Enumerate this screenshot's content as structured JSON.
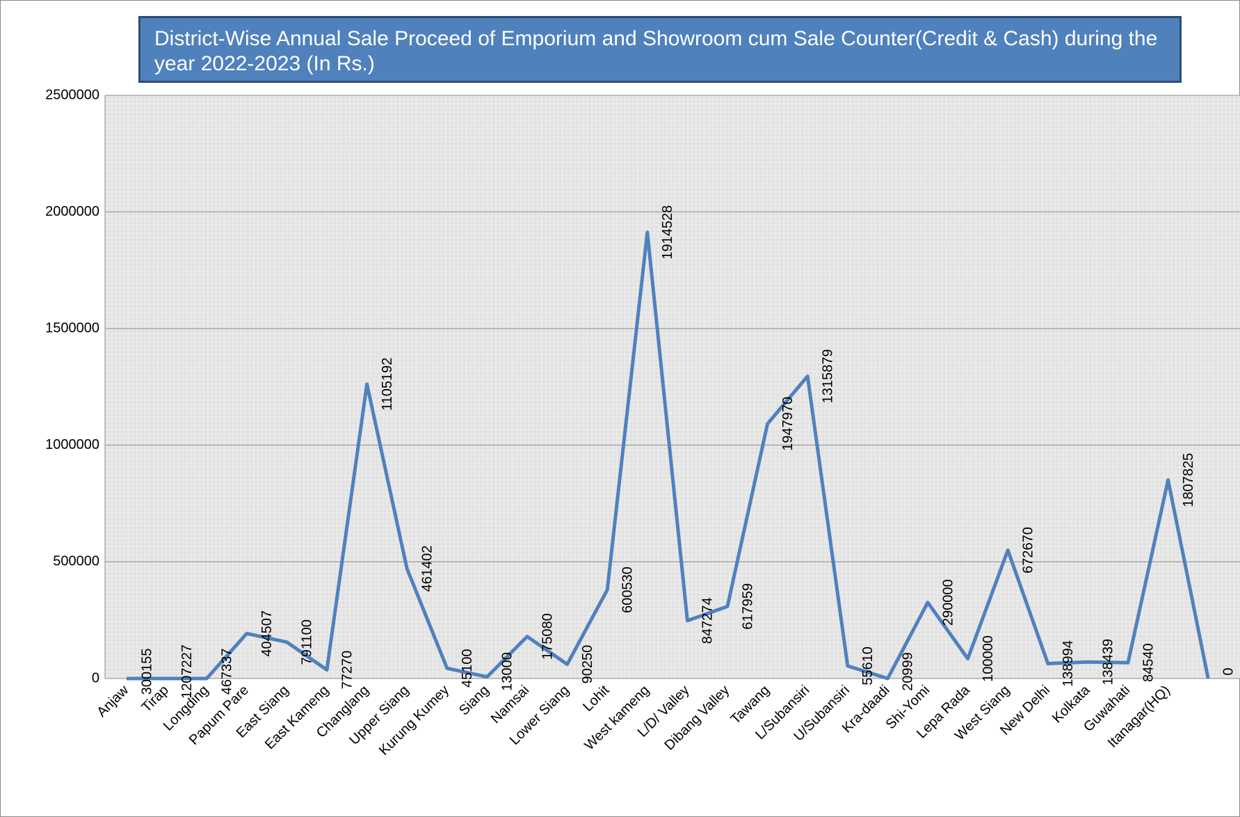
{
  "chart_data": {
    "type": "line",
    "title": "District-Wise Annual Sale Proceed of Emporium and Showroom cum Sale Counter(Credit & Cash) during the year 2022-2023 (In Rs.)",
    "categories": [
      "Anjaw",
      "Tirap",
      "Longding",
      "Papum Pare",
      "East Siang",
      "East Kameng",
      "Changlang",
      "Upper Siang",
      "Kurung  Kumey",
      "Siang",
      "Namsai",
      "Lower Siang",
      "Lohit",
      "West kameng",
      "L/D/ Valley",
      "Dibang Valley",
      "Tawang",
      "L/Subansiri",
      "U/Subansiri",
      "Kra-daadi",
      "Shi-Yomi",
      "Lepa Rada",
      "West Siang",
      "New Delhi",
      "Kolkata",
      "Guwahati",
      "Itanagar(HQ)",
      null
    ],
    "series": [
      {
        "color": "#4f81bd",
        "values": [
          0,
          0,
          0,
          193000,
          156000,
          37000,
          1262000,
          471000,
          44000,
          7000,
          180000,
          61000,
          380000,
          1913000,
          248000,
          309000,
          1092000,
          1296000,
          54000,
          0,
          326000,
          85000,
          550000,
          64000,
          71000,
          68000,
          851000,
          0
        ]
      }
    ],
    "annotations": [
      "300155",
      "1207227",
      "467337",
      "404507",
      "791100",
      "77270",
      "1105192",
      "461402",
      "45100",
      "13000",
      "175080",
      "90250",
      "600530",
      "1914528",
      "847274",
      "617959",
      "1947970",
      "1315879",
      "55610",
      "20999",
      "290000",
      "100000",
      "672670",
      "138994",
      "138439",
      "84540",
      "1807825",
      "0"
    ],
    "ylim": [
      0,
      2500000
    ],
    "yticks": [
      0,
      500000,
      1000000,
      1500000,
      2000000,
      2500000
    ],
    "grid": true
  }
}
